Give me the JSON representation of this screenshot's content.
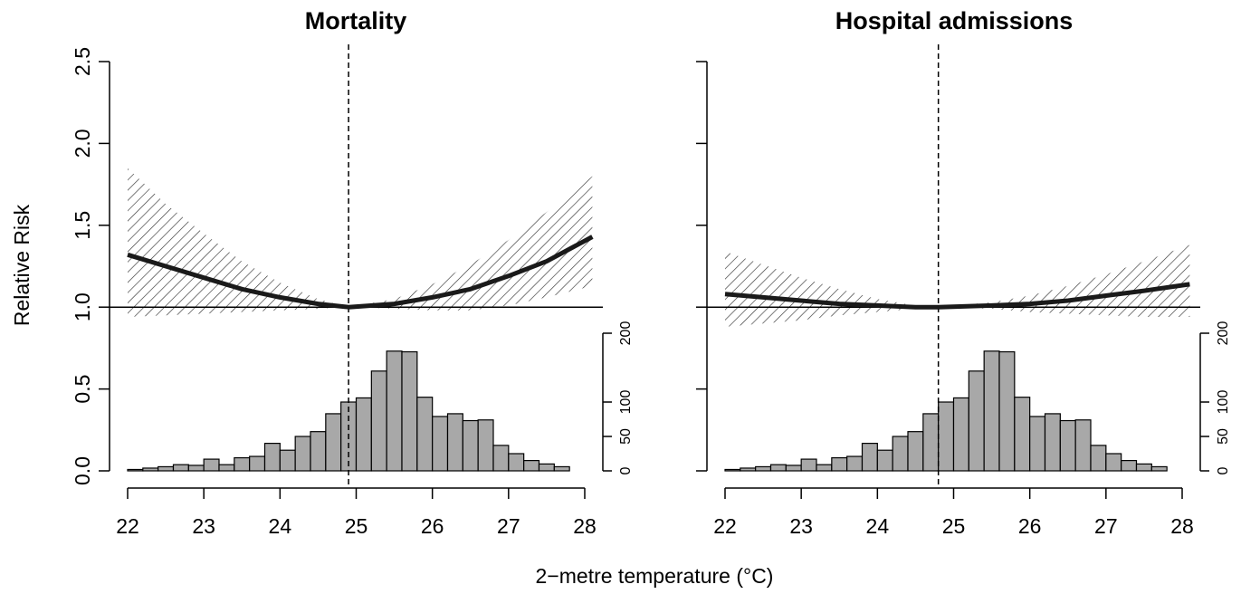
{
  "figure": {
    "shared_xlabel": "2−metre temperature (°C)",
    "shared_ylabel": "Relative Risk"
  },
  "colors": {
    "curve": "#1a1a1a",
    "bar_fill": "#a8a8a8",
    "axis": "#000000",
    "hatch": "#333333"
  },
  "chart_data": [
    {
      "type": "line",
      "title": "Mortality",
      "xlabel": "",
      "ylabel": "Relative Risk",
      "xlim": [
        22,
        28
      ],
      "ylim": [
        0,
        2.5
      ],
      "x_ticks": [
        22,
        23,
        24,
        25,
        26,
        27,
        28
      ],
      "y_ticks": [
        "0.0",
        "0.5",
        "1.0",
        "1.5",
        "2.0",
        "2.5"
      ],
      "reference_line": 1.0,
      "mmt": 24.9,
      "curve": {
        "x": [
          22.0,
          22.5,
          23.0,
          23.5,
          24.0,
          24.5,
          24.9,
          25.5,
          26.0,
          26.5,
          27.0,
          27.5,
          28.1
        ],
        "rr": [
          1.32,
          1.25,
          1.18,
          1.11,
          1.06,
          1.02,
          1.0,
          1.02,
          1.06,
          1.11,
          1.19,
          1.28,
          1.43
        ],
        "lower": [
          0.94,
          0.95,
          0.96,
          0.97,
          0.98,
          0.99,
          1.0,
          0.99,
          0.98,
          0.98,
          1.01,
          1.06,
          1.13
        ],
        "upper": [
          1.85,
          1.63,
          1.45,
          1.28,
          1.15,
          1.05,
          1.0,
          1.05,
          1.14,
          1.26,
          1.41,
          1.58,
          1.8
        ]
      },
      "histogram": {
        "bin_start": 22.0,
        "bin_width": 0.2,
        "counts": [
          2,
          4,
          6,
          9,
          8,
          17,
          9,
          19,
          21,
          40,
          30,
          50,
          57,
          83,
          100,
          106,
          145,
          174,
          173,
          107,
          79,
          83,
          73,
          74,
          37,
          25,
          15,
          10,
          6
        ],
        "y_ticks": [
          "0",
          "50",
          "100",
          "200"
        ],
        "ylim": [
          0,
          200
        ]
      }
    },
    {
      "type": "line",
      "title": "Hospital admissions",
      "xlabel": "",
      "ylabel": "",
      "xlim": [
        22,
        28
      ],
      "ylim": [
        0,
        2.5
      ],
      "x_ticks": [
        22,
        23,
        24,
        25,
        26,
        27,
        28
      ],
      "y_ticks": [
        "0.0",
        "0.5",
        "1.0",
        "1.5",
        "2.0",
        "2.5"
      ],
      "reference_line": 1.0,
      "mmt": 24.8,
      "curve": {
        "x": [
          22.0,
          22.5,
          23.0,
          23.5,
          24.0,
          24.5,
          24.8,
          25.5,
          26.0,
          26.5,
          27.0,
          27.5,
          28.1
        ],
        "rr": [
          1.08,
          1.06,
          1.04,
          1.02,
          1.01,
          1.0,
          1.0,
          1.01,
          1.02,
          1.04,
          1.07,
          1.1,
          1.14
        ],
        "lower": [
          0.88,
          0.9,
          0.92,
          0.95,
          0.97,
          0.99,
          1.0,
          0.99,
          0.97,
          0.96,
          0.95,
          0.94,
          0.94
        ],
        "upper": [
          1.34,
          1.26,
          1.18,
          1.11,
          1.05,
          1.01,
          1.0,
          1.03,
          1.07,
          1.13,
          1.2,
          1.28,
          1.38
        ]
      },
      "histogram": {
        "bin_start": 22.0,
        "bin_width": 0.2,
        "counts": [
          2,
          4,
          6,
          9,
          8,
          17,
          9,
          19,
          21,
          40,
          30,
          50,
          57,
          83,
          100,
          106,
          145,
          174,
          173,
          107,
          79,
          83,
          73,
          74,
          37,
          25,
          15,
          10,
          6
        ],
        "y_ticks": [
          "0",
          "50",
          "100",
          "200"
        ],
        "ylim": [
          0,
          200
        ]
      }
    }
  ]
}
